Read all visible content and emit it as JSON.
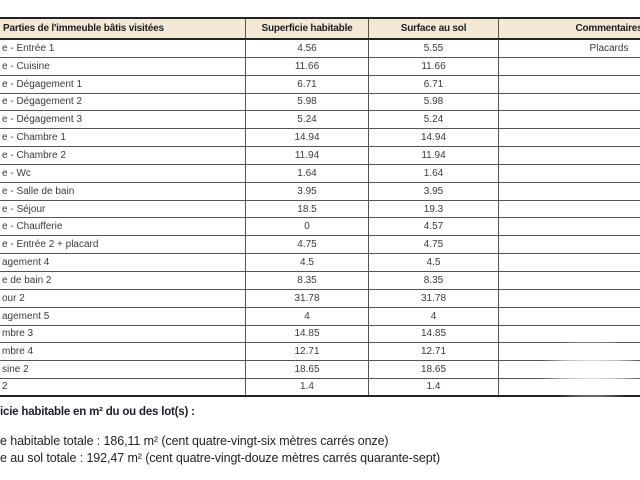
{
  "table": {
    "headers": [
      "Parties de l'immeuble bâtis visitées",
      "Superficie habitable",
      "Surface au sol",
      "Commentaires"
    ],
    "rows": [
      {
        "label": "e - Entrée 1",
        "superficie": "4.56",
        "surface": "5.55",
        "commentaire": "Placards"
      },
      {
        "label": "e - Cuisine",
        "superficie": "11.66",
        "surface": "11.66",
        "commentaire": ""
      },
      {
        "label": "e - Dégagement 1",
        "superficie": "6.71",
        "surface": "6.71",
        "commentaire": ""
      },
      {
        "label": "e - Dégagement 2",
        "superficie": "5.98",
        "surface": "5.98",
        "commentaire": ""
      },
      {
        "label": "e - Dégagement 3",
        "superficie": "5.24",
        "surface": "5.24",
        "commentaire": ""
      },
      {
        "label": "e - Chambre 1",
        "superficie": "14.94",
        "surface": "14.94",
        "commentaire": ""
      },
      {
        "label": "e - Chambre 2",
        "superficie": "11.94",
        "surface": "11.94",
        "commentaire": ""
      },
      {
        "label": "e - Wc",
        "superficie": "1.64",
        "surface": "1.64",
        "commentaire": ""
      },
      {
        "label": "e - Salle de bain",
        "superficie": "3.95",
        "surface": "3.95",
        "commentaire": ""
      },
      {
        "label": "e - Séjour",
        "superficie": "18.5",
        "surface": "19.3",
        "commentaire": ""
      },
      {
        "label": "e - Chaufferie",
        "superficie": "0",
        "surface": "4.57",
        "commentaire": ""
      },
      {
        "label": "e - Entrée 2 + placard",
        "superficie": "4.75",
        "surface": "4.75",
        "commentaire": ""
      },
      {
        "label": "agement 4",
        "superficie": "4.5",
        "surface": "4.5",
        "commentaire": ""
      },
      {
        "label": "e de bain 2",
        "superficie": "8.35",
        "surface": "8.35",
        "commentaire": ""
      },
      {
        "label": "our 2",
        "superficie": "31.78",
        "surface": "31.78",
        "commentaire": ""
      },
      {
        "label": "agement 5",
        "superficie": "4",
        "surface": "4",
        "commentaire": ""
      },
      {
        "label": "mbre 3",
        "superficie": "14.85",
        "surface": "14.85",
        "commentaire": ""
      },
      {
        "label": "mbre 4",
        "superficie": "12.71",
        "surface": "12.71",
        "commentaire": ""
      },
      {
        "label": "sine 2",
        "superficie": "18.65",
        "surface": "18.65",
        "commentaire": ""
      },
      {
        "label": "2",
        "superficie": "1.4",
        "surface": "1.4",
        "commentaire": ""
      }
    ]
  },
  "footer": {
    "heading": "icie habitable en m² du ou des lot(s) :",
    "habitable_total": "e habitable totale : 186,11 m² (cent quatre-vingt-six mètres carrés onze)",
    "sol_total": "e au sol totale : 192,47 m² (cent quatre-vingt-douze mètres carrés quarante-sept)"
  },
  "colors": {
    "header_bg": "#f2e8d4",
    "border_dark": "#232323",
    "border_thin": "#555555",
    "text": "#3a3a3a",
    "heading_text": "#1d1d27"
  }
}
